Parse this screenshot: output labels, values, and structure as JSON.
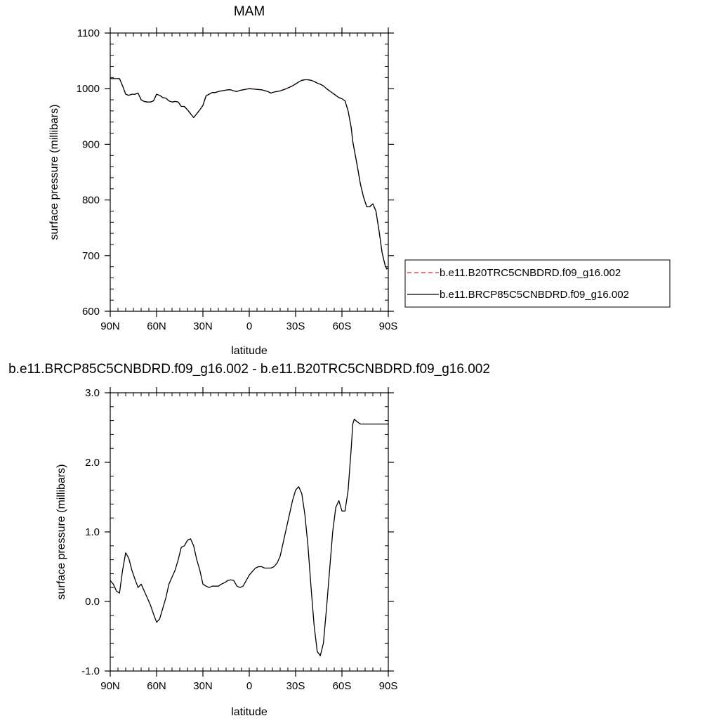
{
  "chart_data": [
    {
      "type": "line",
      "title": "MAM",
      "xlabel": "latitude",
      "ylabel": "surface pressure (millibars)",
      "xlim": [
        90,
        -90
      ],
      "ylim": [
        600,
        1100
      ],
      "x_ticks": [
        {
          "value": 90,
          "label": "90N"
        },
        {
          "value": 60,
          "label": "60N"
        },
        {
          "value": 30,
          "label": "30N"
        },
        {
          "value": 0,
          "label": "0"
        },
        {
          "value": -30,
          "label": "30S"
        },
        {
          "value": -60,
          "label": "60S"
        },
        {
          "value": -90,
          "label": "90S"
        }
      ],
      "y_ticks": [
        {
          "value": 600,
          "label": "600"
        },
        {
          "value": 700,
          "label": "700"
        },
        {
          "value": 800,
          "label": "800"
        },
        {
          "value": 900,
          "label": "900"
        },
        {
          "value": 1000,
          "label": "1000"
        },
        {
          "value": 1100,
          "label": "1100"
        }
      ],
      "legend_position": "outside-right",
      "series": [
        {
          "name": "b.e11.B20TRC5CNBDRD.f09_g16.002",
          "color": "#e8262d",
          "style": "dashed",
          "x": [
            90,
            87,
            84,
            82,
            80,
            78,
            76,
            74,
            72,
            70,
            68,
            66,
            64,
            62,
            60,
            58,
            56,
            54,
            52,
            50,
            48,
            46,
            44,
            42,
            40,
            38,
            36,
            34,
            32,
            30,
            28,
            26,
            24,
            22,
            20,
            18,
            16,
            14,
            12,
            10,
            8,
            6,
            4,
            2,
            0,
            -4,
            -8,
            -12,
            -14,
            -16,
            -20,
            -24,
            -28,
            -32,
            -34,
            -36,
            -38,
            -40,
            -42,
            -44,
            -46,
            -48,
            -50,
            -52,
            -54,
            -56,
            -58,
            -60,
            -62,
            -64,
            -66,
            -67,
            -68,
            -70,
            -72,
            -74,
            -76,
            -78,
            -80,
            -82,
            -84,
            -86,
            -88,
            -89,
            -90
          ],
          "y": [
            1018,
            1018,
            1018,
            1005,
            990,
            988,
            990,
            990,
            992,
            980,
            977,
            976,
            976,
            978,
            990,
            988,
            984,
            983,
            978,
            976,
            977,
            976,
            968,
            968,
            962,
            955,
            948,
            955,
            962,
            970,
            987,
            990,
            993,
            993,
            995,
            996,
            997,
            998,
            998,
            996,
            995,
            997,
            998,
            999,
            1000,
            999,
            998,
            995,
            992,
            994,
            996,
            1000,
            1005,
            1012,
            1015,
            1016,
            1016,
            1015,
            1013,
            1010,
            1008,
            1005,
            1000,
            996,
            992,
            988,
            984,
            982,
            978,
            960,
            930,
            905,
            890,
            860,
            828,
            805,
            788,
            788,
            793,
            780,
            745,
            705,
            682,
            676,
            678
          ]
        },
        {
          "name": "b.e11.BRCP85C5CNBDRD.f09_g16.002",
          "color": "#000000",
          "style": "solid",
          "x": [
            90,
            87,
            84,
            82,
            80,
            78,
            76,
            74,
            72,
            70,
            68,
            66,
            64,
            62,
            60,
            58,
            56,
            54,
            52,
            50,
            48,
            46,
            44,
            42,
            40,
            38,
            36,
            34,
            32,
            30,
            28,
            26,
            24,
            22,
            20,
            18,
            16,
            14,
            12,
            10,
            8,
            6,
            4,
            2,
            0,
            -4,
            -8,
            -12,
            -14,
            -16,
            -20,
            -24,
            -28,
            -32,
            -34,
            -36,
            -38,
            -40,
            -42,
            -44,
            -46,
            -48,
            -50,
            -52,
            -54,
            -56,
            -58,
            -60,
            -62,
            -64,
            -66,
            -67,
            -68,
            -70,
            -72,
            -74,
            -76,
            -78,
            -80,
            -82,
            -84,
            -86,
            -88,
            -89,
            -90
          ],
          "y": [
            1018,
            1018,
            1018,
            1005,
            990,
            988,
            990,
            990,
            992,
            980,
            977,
            976,
            976,
            978,
            990,
            988,
            984,
            983,
            978,
            976,
            977,
            976,
            968,
            968,
            962,
            955,
            948,
            955,
            962,
            970,
            987,
            990,
            993,
            993,
            995,
            996,
            997,
            998,
            998,
            996,
            995,
            997,
            998,
            999,
            1000,
            999,
            998,
            995,
            992,
            994,
            996,
            1000,
            1005,
            1012,
            1015,
            1016,
            1016,
            1015,
            1013,
            1010,
            1008,
            1005,
            1000,
            996,
            992,
            988,
            984,
            982,
            978,
            960,
            930,
            905,
            890,
            860,
            828,
            805,
            788,
            788,
            793,
            780,
            745,
            705,
            682,
            676,
            678
          ]
        }
      ]
    },
    {
      "type": "line",
      "title": "b.e11.BRCP85C5CNBDRD.f09_g16.002 - b.e11.B20TRC5CNBDRD.f09_g16.002",
      "xlabel": "latitude",
      "ylabel": "surface pressure (millibars)",
      "xlim": [
        90,
        -90
      ],
      "ylim": [
        -1.0,
        3.0
      ],
      "x_ticks": [
        {
          "value": 90,
          "label": "90N"
        },
        {
          "value": 60,
          "label": "60N"
        },
        {
          "value": 30,
          "label": "30N"
        },
        {
          "value": 0,
          "label": "0"
        },
        {
          "value": -30,
          "label": "30S"
        },
        {
          "value": -60,
          "label": "60S"
        },
        {
          "value": -90,
          "label": "90S"
        }
      ],
      "y_ticks": [
        {
          "value": -1.0,
          "label": "-1.0"
        },
        {
          "value": 0.0,
          "label": "0.0"
        },
        {
          "value": 1.0,
          "label": "1.0"
        },
        {
          "value": 2.0,
          "label": "2.0"
        },
        {
          "value": 3.0,
          "label": "3.0"
        }
      ],
      "series": [
        {
          "color": "#000000",
          "style": "solid",
          "x": [
            90,
            88,
            86,
            84,
            82,
            80,
            78,
            76,
            74,
            72,
            70,
            68,
            66,
            64,
            62,
            60,
            58,
            56,
            54,
            52,
            50,
            48,
            46,
            44,
            42,
            40,
            38,
            36,
            34,
            32,
            30,
            28,
            26,
            24,
            22,
            20,
            18,
            16,
            14,
            12,
            10,
            8,
            6,
            4,
            2,
            0,
            -2,
            -4,
            -6,
            -8,
            -10,
            -12,
            -14,
            -16,
            -18,
            -20,
            -22,
            -24,
            -26,
            -28,
            -30,
            -32,
            -34,
            -36,
            -38,
            -40,
            -42,
            -44,
            -46,
            -48,
            -50,
            -52,
            -54,
            -56,
            -58,
            -60,
            -62,
            -64,
            -66,
            -67,
            -68,
            -70,
            -72,
            -74,
            -76,
            -78,
            -80,
            -82,
            -84,
            -86,
            -88,
            -89,
            -90
          ],
          "y": [
            0.3,
            0.25,
            0.15,
            0.12,
            0.45,
            0.7,
            0.62,
            0.45,
            0.32,
            0.2,
            0.25,
            0.15,
            0.05,
            -0.05,
            -0.18,
            -0.3,
            -0.25,
            -0.1,
            0.05,
            0.25,
            0.35,
            0.45,
            0.6,
            0.78,
            0.8,
            0.88,
            0.9,
            0.8,
            0.6,
            0.45,
            0.25,
            0.22,
            0.2,
            0.22,
            0.22,
            0.22,
            0.25,
            0.27,
            0.3,
            0.31,
            0.3,
            0.22,
            0.2,
            0.22,
            0.3,
            0.38,
            0.43,
            0.48,
            0.5,
            0.5,
            0.48,
            0.48,
            0.48,
            0.5,
            0.55,
            0.65,
            0.85,
            1.05,
            1.25,
            1.45,
            1.6,
            1.65,
            1.55,
            1.25,
            0.8,
            0.2,
            -0.35,
            -0.72,
            -0.78,
            -0.6,
            -0.1,
            0.45,
            1.0,
            1.35,
            1.45,
            1.3,
            1.3,
            1.6,
            2.2,
            2.55,
            2.62,
            2.58,
            2.55,
            2.55,
            2.55,
            2.55,
            2.55,
            2.55,
            2.55,
            2.55,
            2.55,
            2.55,
            2.55
          ]
        }
      ]
    }
  ]
}
